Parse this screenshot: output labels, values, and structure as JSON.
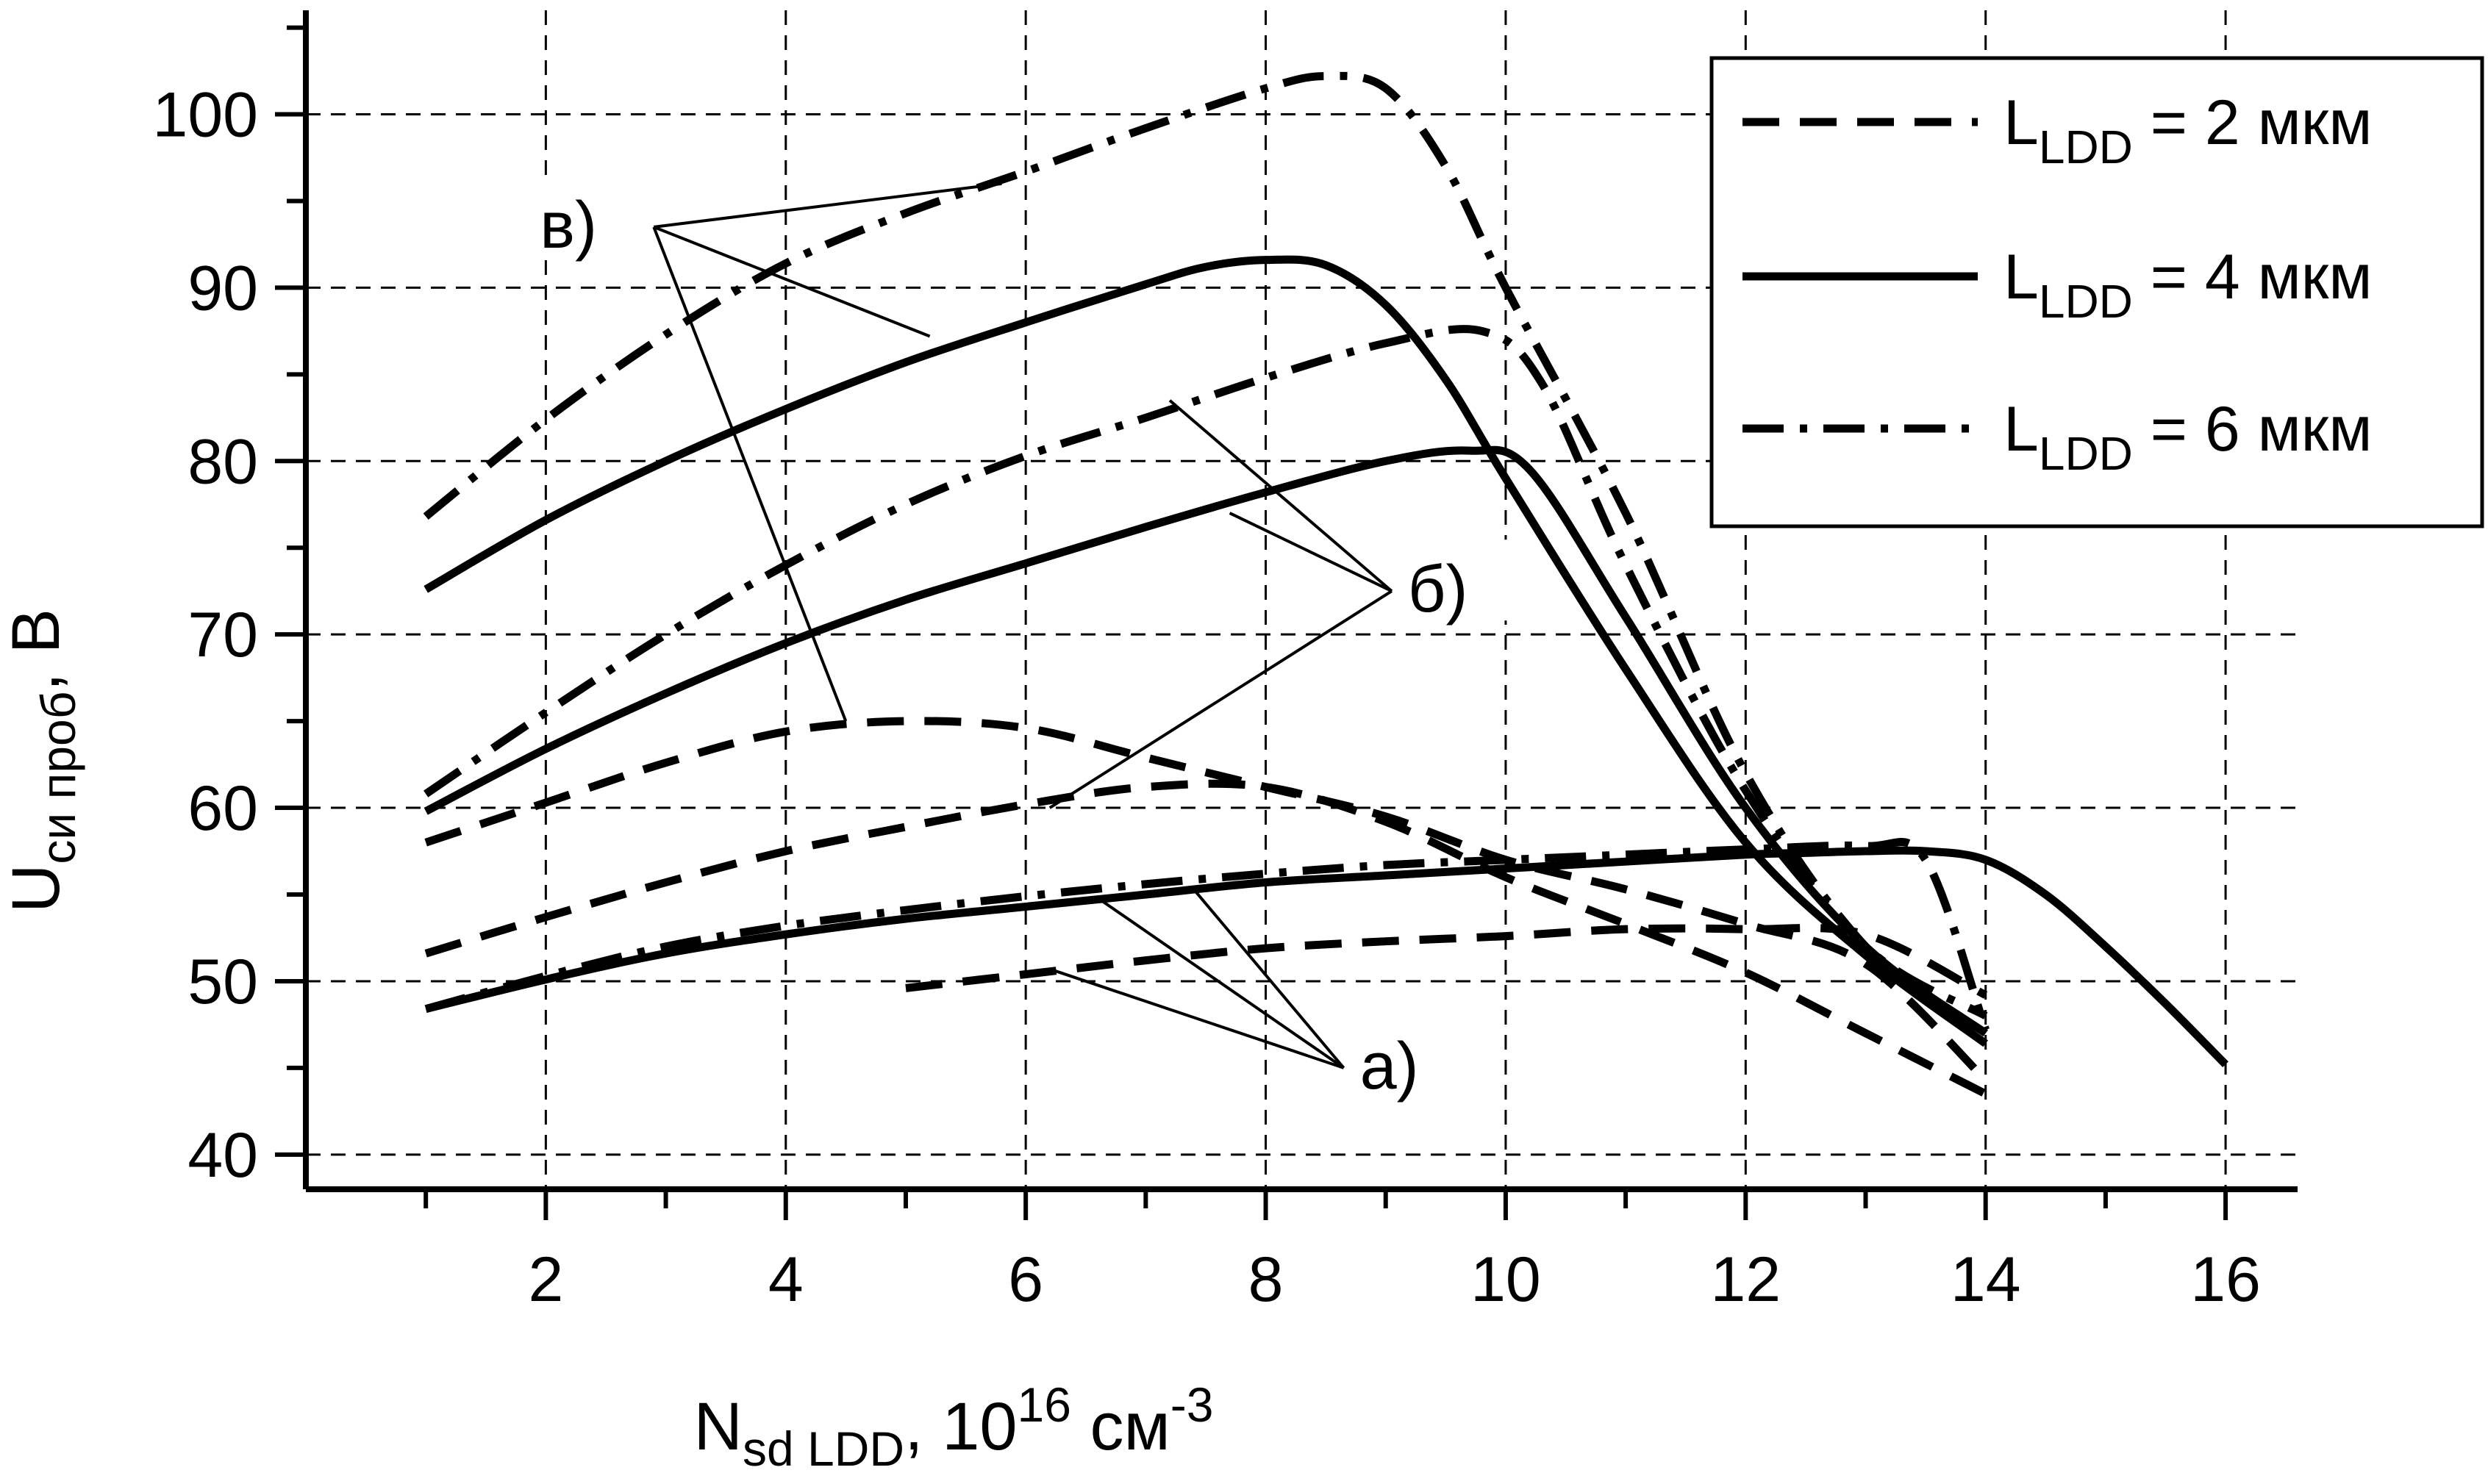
{
  "chart_data": {
    "type": "line",
    "ylabel": "U",
    "ylabel_sub": "си проб",
    "ylabel_unit": ", В",
    "xlabel": "N",
    "xlabel_sub": "sd LDD",
    "xlabel_unit": ", 10",
    "xlabel_exp": "16",
    "xlabel_unit2": " см",
    "xlabel_unit2_exp": "-3",
    "xlim": [
      0,
      16.6
    ],
    "ylim": [
      38,
      106
    ],
    "xticks": [
      2,
      4,
      6,
      8,
      10,
      12,
      14,
      16
    ],
    "yticks": [
      40,
      50,
      60,
      70,
      80,
      90,
      100
    ],
    "grid": true,
    "legend_position": "top-right",
    "legend": [
      {
        "main": "L",
        "sub": "LDD",
        "rest": " = 2 мкм",
        "style": "dashed"
      },
      {
        "main": "L",
        "sub": "LDD",
        "rest": " = 4 мкм",
        "style": "solid"
      },
      {
        "main": "L",
        "sub": "LDD",
        "rest": " = 6 мкм",
        "style": "dash-dot"
      }
    ],
    "series": [
      {
        "group": "а)",
        "style": "dashed",
        "x": [
          5,
          6,
          7,
          8,
          9,
          10,
          11,
          12,
          13,
          14
        ],
        "y": [
          49.6,
          50.4,
          51.2,
          51.9,
          52.3,
          52.6,
          53,
          53,
          52.7,
          49.2
        ]
      },
      {
        "group": "а)",
        "style": "solid",
        "x": [
          1,
          2,
          3,
          4,
          5,
          6,
          7,
          8,
          9,
          10,
          11,
          12,
          12.5,
          13,
          13.5,
          14,
          14.5,
          15,
          15.5,
          16
        ],
        "y": [
          48.4,
          50.1,
          51.6,
          52.7,
          53.6,
          54.3,
          55,
          55.7,
          56.1,
          56.5,
          56.9,
          57.3,
          57.4,
          57.5,
          57.5,
          57,
          55,
          52,
          48.7,
          45.2
        ]
      },
      {
        "group": "а)",
        "style": "dash-dot",
        "x": [
          1,
          2,
          3,
          4,
          5,
          6,
          7,
          8,
          9,
          10,
          11,
          12,
          13,
          13.5,
          14
        ],
        "y": [
          48.4,
          50.3,
          52,
          53.2,
          54.1,
          54.9,
          55.6,
          56.2,
          56.7,
          57,
          57.3,
          57.6,
          57.8,
          57,
          47.2
        ]
      },
      {
        "group": "б)",
        "style": "dashed",
        "x": [
          1,
          2,
          3,
          4,
          5,
          6,
          7,
          8,
          9,
          10,
          11,
          12,
          13,
          14
        ],
        "y": [
          51.6,
          53.7,
          55.7,
          57.5,
          58.9,
          60.2,
          61.2,
          61.2,
          59.2,
          56,
          53.3,
          50.5,
          47,
          43.5
        ]
      },
      {
        "group": "б)",
        "style": "solid",
        "x": [
          1,
          2,
          3,
          4,
          5,
          6,
          7,
          8,
          9,
          9.7,
          10.2,
          11,
          12,
          13,
          14
        ],
        "y": [
          59.8,
          63.4,
          66.6,
          69.5,
          72,
          74.1,
          76.2,
          78.2,
          80,
          80.6,
          79.5,
          71,
          60,
          52,
          47
        ]
      },
      {
        "group": "б)",
        "style": "dash-dot",
        "x": [
          1,
          2,
          3,
          4,
          5,
          6,
          7,
          8,
          9,
          9.8,
          10.3,
          11,
          12,
          13,
          14
        ],
        "y": [
          60.8,
          65.5,
          70,
          74,
          77.5,
          80.3,
          82.5,
          84.8,
          86.8,
          87.5,
          84.5,
          74,
          61,
          52,
          48
        ]
      },
      {
        "group": "в)",
        "style": "dashed",
        "x": [
          1,
          2,
          3,
          4,
          5,
          6,
          7,
          8,
          9,
          10,
          11,
          12,
          13,
          14
        ],
        "y": [
          58,
          60.3,
          62.6,
          64.4,
          65,
          64.6,
          62.9,
          61.2,
          59.5,
          57,
          55.3,
          53.3,
          51,
          44.3
        ]
      },
      {
        "group": "в)",
        "style": "solid",
        "x": [
          1,
          2,
          3,
          4,
          5,
          6,
          7,
          7.5,
          8,
          8.5,
          9,
          9.5,
          10,
          11,
          12,
          13,
          14
        ],
        "y": [
          72.6,
          76.6,
          80,
          83,
          85.7,
          88,
          90.2,
          91.2,
          91.6,
          91.3,
          89,
          84.7,
          79,
          68,
          58,
          51.5,
          46.4
        ]
      },
      {
        "group": "в)",
        "style": "dash-dot",
        "x": [
          1,
          2,
          3,
          4,
          5,
          6,
          7,
          8,
          8.5,
          9,
          9.5,
          10,
          11,
          12,
          13,
          14
        ],
        "y": [
          76.8,
          82.4,
          87.3,
          91.4,
          94.3,
          96.7,
          99.2,
          101.5,
          102.2,
          101.5,
          97,
          90,
          77,
          62,
          52,
          47
        ]
      }
    ],
    "annotations": [
      {
        "label": "в)",
        "anchor": [
          2.9,
          93.5
        ],
        "targets": [
          [
            5.8,
            96
          ],
          [
            5.2,
            87.2
          ],
          [
            4.5,
            65
          ]
        ]
      },
      {
        "label": "б)",
        "anchor": [
          9.05,
          72.5
        ],
        "targets": [
          [
            7.2,
            83.5
          ],
          [
            7.7,
            77
          ],
          [
            6.2,
            60
          ]
        ]
      },
      {
        "label": "а)",
        "anchor": [
          8.65,
          45
        ],
        "targets": [
          [
            6.6,
            54.8
          ],
          [
            7.4,
            55.3
          ],
          [
            6.2,
            50.7
          ]
        ]
      }
    ]
  }
}
